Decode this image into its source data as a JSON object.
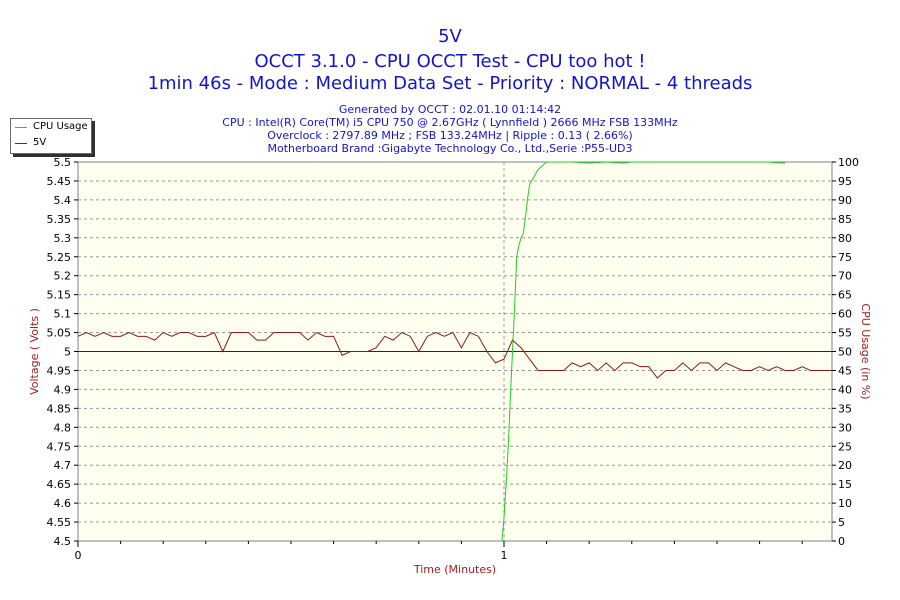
{
  "header": {
    "title": "5V",
    "subtitle1": "OCCT 3.1.0 - CPU OCCT Test - CPU too hot !",
    "subtitle2": "1min 46s - Mode : Medium Data Set - Priority : NORMAL - 4 threads",
    "info1": "Generated by OCCT : 02.01.10 01:14:42",
    "info2": "CPU : Intel(R) Core(TM) i5 CPU 750 @ 2.67GHz ( Lynnfield ) 2666 MHz FSB 133MHz",
    "info3": "Overclock : 2797.89 MHz ; FSB 133.24MHz | Ripple : 0.13 ( 2.66%)",
    "info4": "Motherboard Brand :Gigabyte Technology Co., Ltd.,Serie :P55-UD3"
  },
  "legend": {
    "items": [
      {
        "label": "CPU Usage",
        "color": "#22cc22"
      },
      {
        "label": "5V",
        "color": "#8b1a1a"
      }
    ]
  },
  "chart_data": {
    "type": "line",
    "title": "5V",
    "xlabel": "Time (Minutes)",
    "ylabel": "Voltage ( Volts )",
    "y2label": "CPU Usage (in %)",
    "xlim": [
      0,
      1.77
    ],
    "xticks": [
      0,
      1
    ],
    "ylim": [
      4.5,
      5.5
    ],
    "yticks": [
      "4.5",
      "4.55",
      "4.6",
      "4.65",
      "4.7",
      "4.75",
      "4.8",
      "4.85",
      "4.9",
      "4.95",
      "5",
      "5.05",
      "5.1",
      "5.15",
      "5.2",
      "5.25",
      "5.3",
      "5.35",
      "5.4",
      "5.45",
      "5.5"
    ],
    "y2lim": [
      0,
      100
    ],
    "y2ticks": [
      "0",
      "5",
      "10",
      "15",
      "20",
      "25",
      "30",
      "35",
      "40",
      "45",
      "50",
      "55",
      "60",
      "65",
      "70",
      "75",
      "80",
      "85",
      "90",
      "95",
      "100"
    ],
    "reference_line": {
      "y": 5.0,
      "color": "#1414c8"
    },
    "marker_x": 1.0,
    "grid": true,
    "plot_background": "#fffff0",
    "series": [
      {
        "name": "5V",
        "axis": "left",
        "color": "#8b1a1a",
        "x": [
          0,
          0.02,
          0.04,
          0.06,
          0.08,
          0.1,
          0.12,
          0.14,
          0.16,
          0.18,
          0.2,
          0.22,
          0.24,
          0.26,
          0.28,
          0.3,
          0.32,
          0.34,
          0.36,
          0.38,
          0.4,
          0.42,
          0.44,
          0.46,
          0.48,
          0.5,
          0.52,
          0.54,
          0.56,
          0.58,
          0.6,
          0.62,
          0.64,
          0.66,
          0.68,
          0.7,
          0.72,
          0.74,
          0.76,
          0.78,
          0.8,
          0.82,
          0.84,
          0.86,
          0.88,
          0.9,
          0.92,
          0.94,
          0.96,
          0.98,
          1.0,
          1.02,
          1.04,
          1.06,
          1.08,
          1.1,
          1.12,
          1.14,
          1.16,
          1.18,
          1.2,
          1.22,
          1.24,
          1.26,
          1.28,
          1.3,
          1.32,
          1.34,
          1.36,
          1.38,
          1.4,
          1.42,
          1.44,
          1.46,
          1.48,
          1.5,
          1.52,
          1.54,
          1.56,
          1.58,
          1.6,
          1.62,
          1.64,
          1.66,
          1.68,
          1.7,
          1.72,
          1.74,
          1.77
        ],
        "y": [
          5.04,
          5.05,
          5.04,
          5.05,
          5.04,
          5.04,
          5.05,
          5.04,
          5.04,
          5.03,
          5.05,
          5.04,
          5.05,
          5.05,
          5.04,
          5.04,
          5.05,
          5.0,
          5.05,
          5.05,
          5.05,
          5.03,
          5.03,
          5.05,
          5.05,
          5.05,
          5.05,
          5.03,
          5.05,
          5.04,
          5.04,
          4.99,
          5.0,
          5.0,
          5.0,
          5.01,
          5.04,
          5.03,
          5.05,
          5.04,
          5.0,
          5.04,
          5.05,
          5.04,
          5.05,
          5.01,
          5.05,
          5.04,
          5.0,
          4.97,
          4.98,
          5.03,
          5.01,
          4.98,
          4.95,
          4.95,
          4.95,
          4.95,
          4.97,
          4.96,
          4.97,
          4.95,
          4.97,
          4.95,
          4.97,
          4.97,
          4.96,
          4.96,
          4.93,
          4.95,
          4.95,
          4.97,
          4.95,
          4.97,
          4.97,
          4.95,
          4.97,
          4.96,
          4.95,
          4.95,
          4.96,
          4.95,
          4.96,
          4.95,
          4.95,
          4.96,
          4.95,
          4.95,
          4.95
        ]
      },
      {
        "name": "CPU Usage",
        "axis": "right",
        "color": "#22cc22",
        "x": [
          0.995,
          1.0,
          1.005,
          1.01,
          1.015,
          1.02,
          1.025,
          1.03,
          1.035,
          1.04,
          1.045,
          1.05,
          1.055,
          1.06,
          1.07,
          1.08,
          1.09,
          1.1,
          1.12,
          1.16,
          1.2,
          1.24,
          1.28,
          1.3,
          1.5,
          1.62,
          1.66
        ],
        "y": [
          0,
          6,
          15,
          25,
          38,
          50,
          62,
          75,
          78,
          80,
          81,
          85,
          90,
          94,
          96,
          98,
          99,
          100,
          100,
          100,
          99.7,
          100,
          99.7,
          100,
          100,
          100,
          99.7
        ]
      }
    ]
  }
}
